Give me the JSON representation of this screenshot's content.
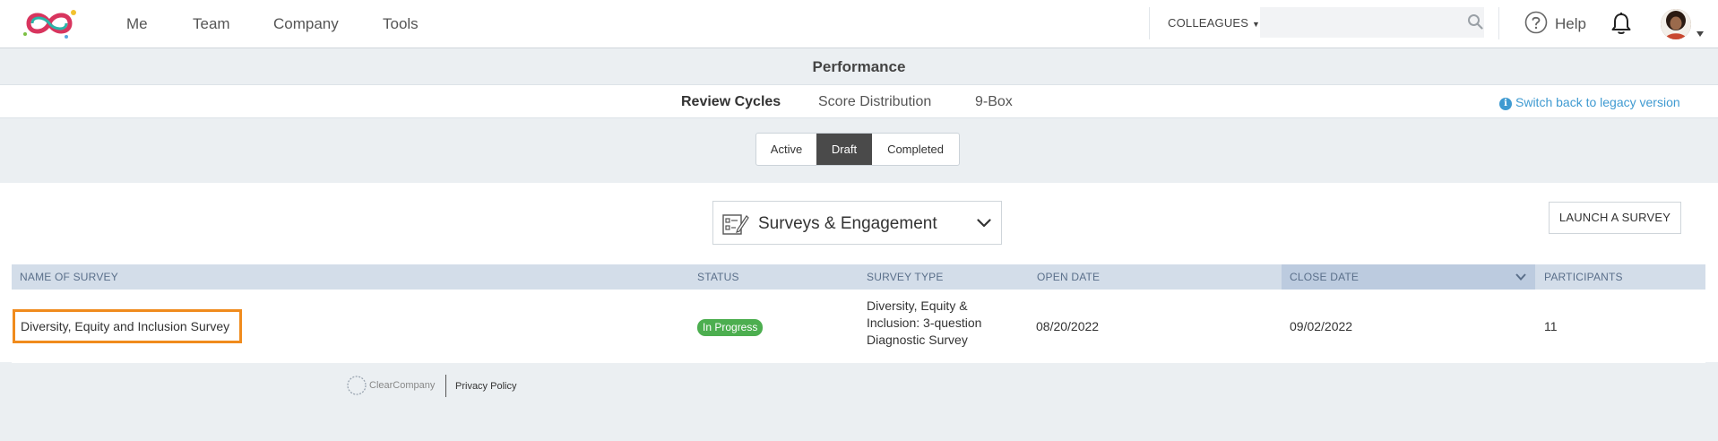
{
  "nav": {
    "items": [
      "Me",
      "Team",
      "Company",
      "Tools"
    ],
    "colleagues_label": "COLLEAGUES",
    "search_placeholder": "",
    "help_label": "Help"
  },
  "page": {
    "title": "Performance",
    "tabs": [
      "Review Cycles",
      "Score Distribution",
      "9-Box"
    ],
    "active_tab": "Review Cycles",
    "legacy_link": "Switch back to legacy version"
  },
  "filter": {
    "options": [
      "Active",
      "Draft",
      "Completed"
    ],
    "selected": "Draft"
  },
  "survey_dropdown": {
    "label": "Surveys & Engagement"
  },
  "launch_button": "LAUNCH A SURVEY",
  "table": {
    "columns": [
      "NAME OF SURVEY",
      "STATUS",
      "SURVEY TYPE",
      "OPEN DATE",
      "CLOSE DATE",
      "PARTICIPANTS"
    ],
    "sorted_column": "CLOSE DATE",
    "rows": [
      {
        "name": "Diversity, Equity and Inclusion Survey",
        "status": "In Progress",
        "type": "Diversity, Equity & Inclusion: 3-question Diagnostic Survey",
        "open_date": "08/20/2022",
        "close_date": "09/02/2022",
        "participants": "11"
      }
    ]
  },
  "footer": {
    "brand": "ClearCompany",
    "privacy_link": "Privacy Policy"
  },
  "colors": {
    "accent_link": "#3f9ad1",
    "status_green": "#4cae4f",
    "highlight_orange": "#f08b1d",
    "table_header": "#d3dde9"
  }
}
